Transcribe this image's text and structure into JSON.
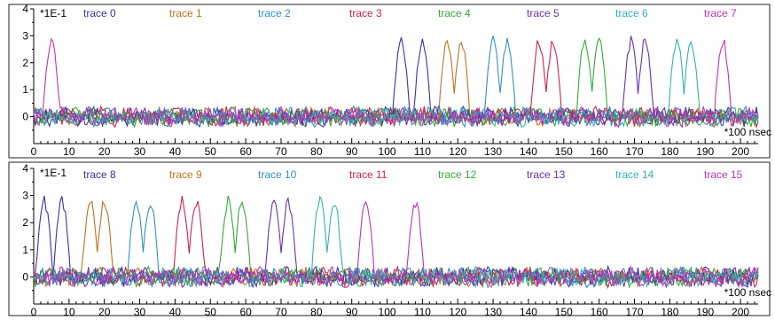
{
  "chart_data": [
    {
      "type": "line",
      "title": "",
      "xlabel": "*100 nsec",
      "ylabel": "",
      "y_multiplier_label": "*1E-1",
      "xlim": [
        0,
        205
      ],
      "ylim": [
        -1,
        4
      ],
      "x_ticks": [
        0,
        10,
        20,
        30,
        40,
        50,
        60,
        70,
        80,
        90,
        100,
        110,
        120,
        130,
        140,
        150,
        160,
        170,
        180,
        190,
        200
      ],
      "y_ticks": [
        0,
        1,
        2,
        3,
        4
      ],
      "legend": "top, horizontal row",
      "series": [
        {
          "name": "trace 0",
          "color": "#3333aa",
          "pulses": [
            104,
            110
          ]
        },
        {
          "name": "trace 1",
          "color": "#c07020",
          "pulses": [
            117,
            121
          ]
        },
        {
          "name": "trace 2",
          "color": "#3090c8",
          "pulses": [
            130,
            134
          ]
        },
        {
          "name": "trace 3",
          "color": "#cc2255",
          "pulses": [
            143,
            147
          ]
        },
        {
          "name": "trace 4",
          "color": "#33aa33",
          "pulses": [
            156,
            160
          ]
        },
        {
          "name": "trace 5",
          "color": "#6633aa",
          "pulses": [
            169,
            173
          ]
        },
        {
          "name": "trace 6",
          "color": "#33b0b0",
          "pulses": [
            182,
            186
          ]
        },
        {
          "name": "trace 7",
          "color": "#bb33bb",
          "pulses": [
            5,
            195
          ]
        }
      ],
      "pulse_height": 3.0,
      "baseline_noise": 0.3
    },
    {
      "type": "line",
      "title": "",
      "xlabel": "*100 nsec",
      "ylabel": "",
      "y_multiplier_label": "*1E-1",
      "xlim": [
        0,
        205
      ],
      "ylim": [
        -1,
        4
      ],
      "x_ticks": [
        0,
        10,
        20,
        30,
        40,
        50,
        60,
        70,
        80,
        90,
        100,
        110,
        120,
        130,
        140,
        150,
        160,
        170,
        180,
        190,
        200
      ],
      "y_ticks": [
        0,
        1,
        2,
        3,
        4
      ],
      "legend": "top, horizontal row",
      "series": [
        {
          "name": "trace 8",
          "color": "#3333aa",
          "pulses": [
            3,
            8
          ]
        },
        {
          "name": "trace 9",
          "color": "#c07020",
          "pulses": [
            16,
            20
          ]
        },
        {
          "name": "trace 10",
          "color": "#3090c8",
          "pulses": [
            29,
            33
          ]
        },
        {
          "name": "trace 11",
          "color": "#cc2255",
          "pulses": [
            42,
            46
          ]
        },
        {
          "name": "trace 12",
          "color": "#33aa33",
          "pulses": [
            55,
            59
          ]
        },
        {
          "name": "trace 13",
          "color": "#6633aa",
          "pulses": [
            68,
            72
          ]
        },
        {
          "name": "trace 14",
          "color": "#33b0b0",
          "pulses": [
            81,
            85
          ]
        },
        {
          "name": "trace 15",
          "color": "#bb33bb",
          "pulses": [
            94,
            108
          ]
        }
      ],
      "pulse_height": 3.0,
      "baseline_noise": 0.3
    }
  ]
}
